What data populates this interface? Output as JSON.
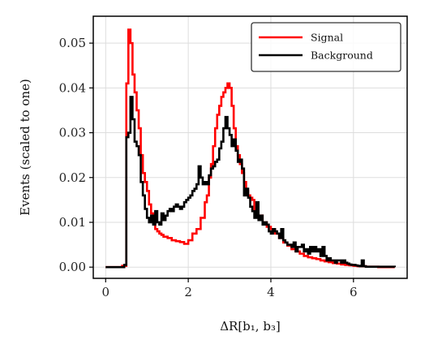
{
  "chart_data": {
    "type": "line",
    "drawstyle": "steps",
    "xlabel": "ΔR[b₁, b₃]",
    "ylabel": "Events (scaled to one)",
    "xlim": [
      -0.3,
      7.3
    ],
    "ylim": [
      -0.0025,
      0.056
    ],
    "xticks": [
      0,
      2,
      4,
      6
    ],
    "yticks": [
      0.0,
      0.01,
      0.02,
      0.03,
      0.04,
      0.05
    ],
    "xtick_labels": [
      "0",
      "2",
      "4",
      "6"
    ],
    "ytick_labels": [
      "0.00",
      "0.01",
      "0.02",
      "0.03",
      "0.04",
      "0.05"
    ],
    "grid": true,
    "legend_position": "top-right",
    "series": [
      {
        "name": "Signal",
        "color": "#ff0000",
        "x": [
          0.0,
          0.4,
          0.5,
          0.55,
          0.6,
          0.65,
          0.7,
          0.75,
          0.8,
          0.85,
          0.9,
          0.95,
          1.0,
          1.05,
          1.1,
          1.15,
          1.2,
          1.25,
          1.3,
          1.35,
          1.4,
          1.5,
          1.6,
          1.7,
          1.8,
          1.9,
          2.0,
          2.1,
          2.2,
          2.3,
          2.4,
          2.45,
          2.5,
          2.55,
          2.6,
          2.65,
          2.7,
          2.75,
          2.8,
          2.85,
          2.9,
          2.95,
          3.0,
          3.05,
          3.1,
          3.15,
          3.2,
          3.25,
          3.3,
          3.35,
          3.4,
          3.45,
          3.5,
          3.55,
          3.6,
          3.7,
          3.8,
          3.9,
          4.0,
          4.1,
          4.2,
          4.3,
          4.4,
          4.5,
          4.6,
          4.7,
          4.8,
          4.9,
          5.0,
          5.1,
          5.2,
          5.3,
          5.4,
          5.5,
          5.6,
          5.7,
          5.8,
          5.9,
          6.0,
          6.1,
          6.2,
          6.3,
          6.4,
          6.5,
          6.6,
          7.0
        ],
        "y": [
          0.0,
          0.0003,
          0.041,
          0.053,
          0.05,
          0.043,
          0.039,
          0.035,
          0.031,
          0.025,
          0.021,
          0.019,
          0.017,
          0.014,
          0.012,
          0.011,
          0.0085,
          0.008,
          0.0075,
          0.0072,
          0.0068,
          0.0065,
          0.006,
          0.0058,
          0.0056,
          0.0052,
          0.006,
          0.0075,
          0.0085,
          0.011,
          0.0145,
          0.016,
          0.02,
          0.023,
          0.027,
          0.031,
          0.034,
          0.036,
          0.038,
          0.039,
          0.04,
          0.041,
          0.04,
          0.036,
          0.031,
          0.027,
          0.025,
          0.023,
          0.021,
          0.019,
          0.017,
          0.016,
          0.0155,
          0.015,
          0.0125,
          0.0115,
          0.01,
          0.009,
          0.0085,
          0.0075,
          0.0065,
          0.0055,
          0.0048,
          0.004,
          0.0035,
          0.003,
          0.0025,
          0.0022,
          0.002,
          0.0018,
          0.0015,
          0.0013,
          0.0011,
          0.0009,
          0.0008,
          0.0006,
          0.0005,
          0.0004,
          0.0003,
          0.0002,
          0.0002,
          0.0001,
          0.0001,
          0.0001,
          0.0,
          0.0
        ]
      },
      {
        "name": "Background",
        "color": "#000000",
        "x": [
          0.0,
          0.45,
          0.5,
          0.55,
          0.6,
          0.65,
          0.7,
          0.75,
          0.8,
          0.85,
          0.9,
          0.95,
          1.0,
          1.05,
          1.1,
          1.15,
          1.2,
          1.25,
          1.3,
          1.35,
          1.4,
          1.45,
          1.5,
          1.55,
          1.6,
          1.65,
          1.7,
          1.75,
          1.8,
          1.85,
          1.9,
          1.95,
          2.0,
          2.05,
          2.1,
          2.15,
          2.2,
          2.25,
          2.3,
          2.35,
          2.4,
          2.45,
          2.5,
          2.55,
          2.6,
          2.65,
          2.7,
          2.75,
          2.8,
          2.85,
          2.9,
          2.95,
          3.0,
          3.05,
          3.1,
          3.15,
          3.2,
          3.25,
          3.3,
          3.35,
          3.4,
          3.45,
          3.5,
          3.55,
          3.6,
          3.65,
          3.7,
          3.75,
          3.8,
          3.85,
          3.9,
          3.95,
          4.0,
          4.05,
          4.1,
          4.15,
          4.2,
          4.25,
          4.3,
          4.35,
          4.4,
          4.45,
          4.5,
          4.55,
          4.6,
          4.65,
          4.7,
          4.75,
          4.8,
          4.85,
          4.9,
          4.95,
          5.0,
          5.05,
          5.1,
          5.15,
          5.2,
          5.25,
          5.3,
          5.35,
          5.4,
          5.45,
          5.5,
          5.55,
          5.6,
          5.65,
          5.7,
          5.75,
          5.8,
          5.85,
          5.9,
          5.95,
          6.0,
          6.05,
          6.1,
          6.15,
          6.2,
          6.25,
          6.3,
          7.0
        ],
        "y": [
          0.0,
          0.0005,
          0.029,
          0.03,
          0.038,
          0.033,
          0.028,
          0.027,
          0.025,
          0.019,
          0.016,
          0.013,
          0.011,
          0.01,
          0.0115,
          0.0095,
          0.0125,
          0.01,
          0.0095,
          0.012,
          0.0105,
          0.0115,
          0.0125,
          0.013,
          0.0125,
          0.0135,
          0.014,
          0.0135,
          0.013,
          0.0135,
          0.0145,
          0.015,
          0.0155,
          0.016,
          0.017,
          0.0175,
          0.0185,
          0.0225,
          0.02,
          0.0185,
          0.019,
          0.0185,
          0.0205,
          0.022,
          0.0225,
          0.0235,
          0.024,
          0.0265,
          0.028,
          0.031,
          0.0335,
          0.031,
          0.0295,
          0.027,
          0.0285,
          0.026,
          0.0235,
          0.024,
          0.022,
          0.016,
          0.0175,
          0.0155,
          0.0135,
          0.0125,
          0.011,
          0.0145,
          0.0105,
          0.0115,
          0.0095,
          0.01,
          0.0095,
          0.008,
          0.0075,
          0.0085,
          0.008,
          0.0075,
          0.0065,
          0.0085,
          0.006,
          0.0055,
          0.005,
          0.005,
          0.0045,
          0.0055,
          0.0035,
          0.0045,
          0.0045,
          0.005,
          0.0035,
          0.004,
          0.003,
          0.0045,
          0.0035,
          0.0045,
          0.0035,
          0.004,
          0.0025,
          0.0045,
          0.0025,
          0.0015,
          0.002,
          0.0015,
          0.0015,
          0.001,
          0.0015,
          0.0015,
          0.001,
          0.0015,
          0.001,
          0.0008,
          0.0006,
          0.0005,
          0.0005,
          0.0004,
          0.0003,
          0.0002,
          0.0015,
          0.0002,
          0.0001,
          0.0
        ]
      }
    ]
  }
}
